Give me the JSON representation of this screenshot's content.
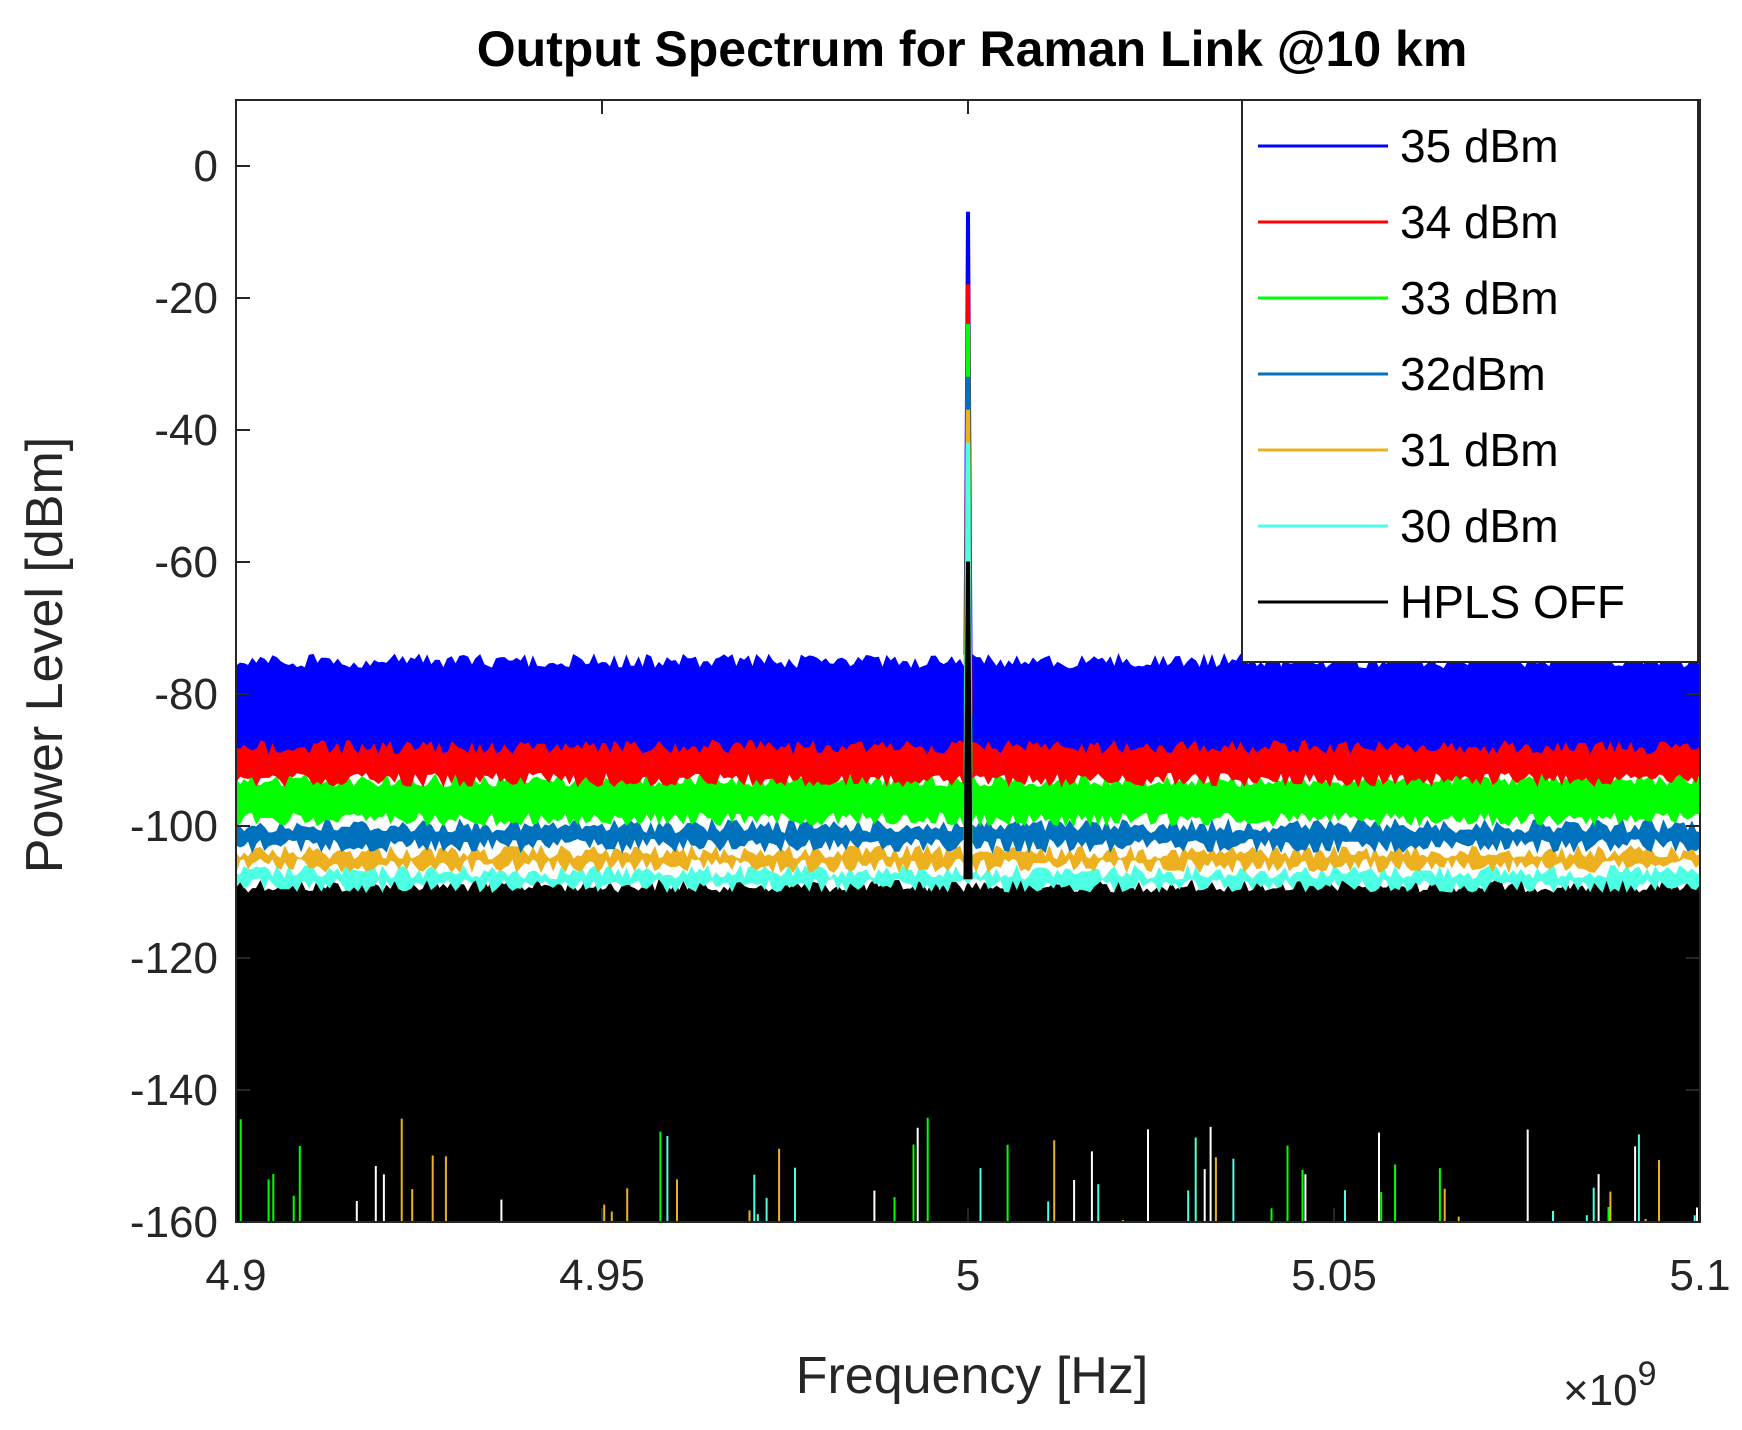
{
  "chart_data": {
    "type": "line",
    "title": "Output Spectrum for Raman Link @10 km",
    "xlabel": "Frequency [Hz]",
    "ylabel": "Power Level [dBm]",
    "x_multiplier_base": "×10",
    "x_multiplier_exp": "9",
    "xlim": [
      4.9,
      5.1
    ],
    "ylim": [
      -160,
      10
    ],
    "xticks": [
      4.9,
      4.95,
      5,
      5.05,
      5.1
    ],
    "xtick_labels": [
      "4.9",
      "4.95",
      "5",
      "5.05",
      "5.1"
    ],
    "yticks": [
      0,
      -20,
      -40,
      -60,
      -80,
      -100,
      -120,
      -140,
      -160
    ],
    "ytick_labels": [
      "0",
      "-20",
      "-40",
      "-60",
      "-80",
      "-100",
      "-120",
      "-140",
      "-160"
    ],
    "grid": false,
    "legend_position": "top-right",
    "carrier_frequency": 5.0,
    "series": [
      {
        "name": "35 dBm",
        "color": "#0000ff",
        "noise_floor_band": [
          -89,
          -74
        ],
        "peak": -7
      },
      {
        "name": "34 dBm",
        "color": "#ff0000",
        "noise_floor_band": [
          -94,
          -83
        ],
        "peak": -18
      },
      {
        "name": "33 dBm",
        "color": "#00ff00",
        "noise_floor_band": [
          -100,
          -92
        ],
        "peak": -24
      },
      {
        "name": "32dBm",
        "color": "#0072bd",
        "noise_floor_band": [
          -104,
          -99
        ],
        "peak": -32
      },
      {
        "name": "31 dBm",
        "color": "#edb120",
        "noise_floor_band": [
          -107,
          -103
        ],
        "peak": -37
      },
      {
        "name": "30 dBm",
        "color": "#4dffe3",
        "noise_floor_band": [
          -110,
          -106
        ],
        "peak": -42
      },
      {
        "name": "HPLS OFF",
        "color": "#000000",
        "noise_floor_band": [
          -160,
          -108
        ],
        "peak": -60
      }
    ]
  }
}
